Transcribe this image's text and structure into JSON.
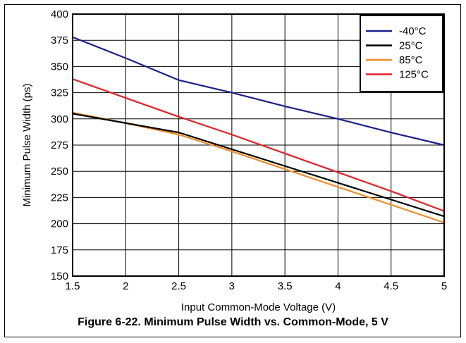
{
  "caption": "Figure 6-22. Minimum Pulse Width vs. Common-Mode, 5 V",
  "chart_data": {
    "type": "line",
    "title": "",
    "xlabel": "Input Common-Mode Voltage (V)",
    "ylabel": "Minimum Pulse Width (ps)",
    "xlim": [
      1.5,
      5
    ],
    "ylim": [
      150,
      400
    ],
    "xticks": [
      1.5,
      2,
      2.5,
      3,
      3.5,
      4,
      4.5,
      5
    ],
    "xtick_labels": [
      "1.5",
      "2",
      "2.5",
      "3",
      "3.5",
      "4",
      "4.5",
      "5"
    ],
    "yticks": [
      150,
      175,
      200,
      225,
      250,
      275,
      300,
      325,
      350,
      375,
      400
    ],
    "ytick_labels": [
      "150",
      "175",
      "200",
      "225",
      "250",
      "275",
      "300",
      "325",
      "350",
      "375",
      "400"
    ],
    "grid": true,
    "legend_position": "top-right",
    "series": [
      {
        "name": "-40°C",
        "color": "#1a1f8c",
        "x": [
          1.5,
          2,
          2.5,
          3,
          3.5,
          4,
          4.5,
          5
        ],
        "values": [
          378,
          358,
          337,
          325,
          312,
          300,
          287,
          275
        ]
      },
      {
        "name": "25°C",
        "color": "#000000",
        "x": [
          1.5,
          2,
          2.5,
          3,
          3.5,
          4,
          4.5,
          5
        ],
        "values": [
          305,
          296,
          287,
          271,
          255,
          239,
          223,
          207
        ]
      },
      {
        "name": "85°C",
        "color": "#f28c28",
        "x": [
          1.5,
          2,
          2.5,
          3,
          3.5,
          4,
          4.5,
          5
        ],
        "values": [
          306,
          296,
          285,
          269,
          252,
          235,
          218,
          201
        ]
      },
      {
        "name": "125°C",
        "color": "#e3222a",
        "x": [
          1.5,
          2,
          2.5,
          3,
          3.5,
          4,
          4.5,
          5
        ],
        "values": [
          338,
          320,
          302,
          285,
          267,
          249,
          231,
          212
        ]
      }
    ]
  }
}
